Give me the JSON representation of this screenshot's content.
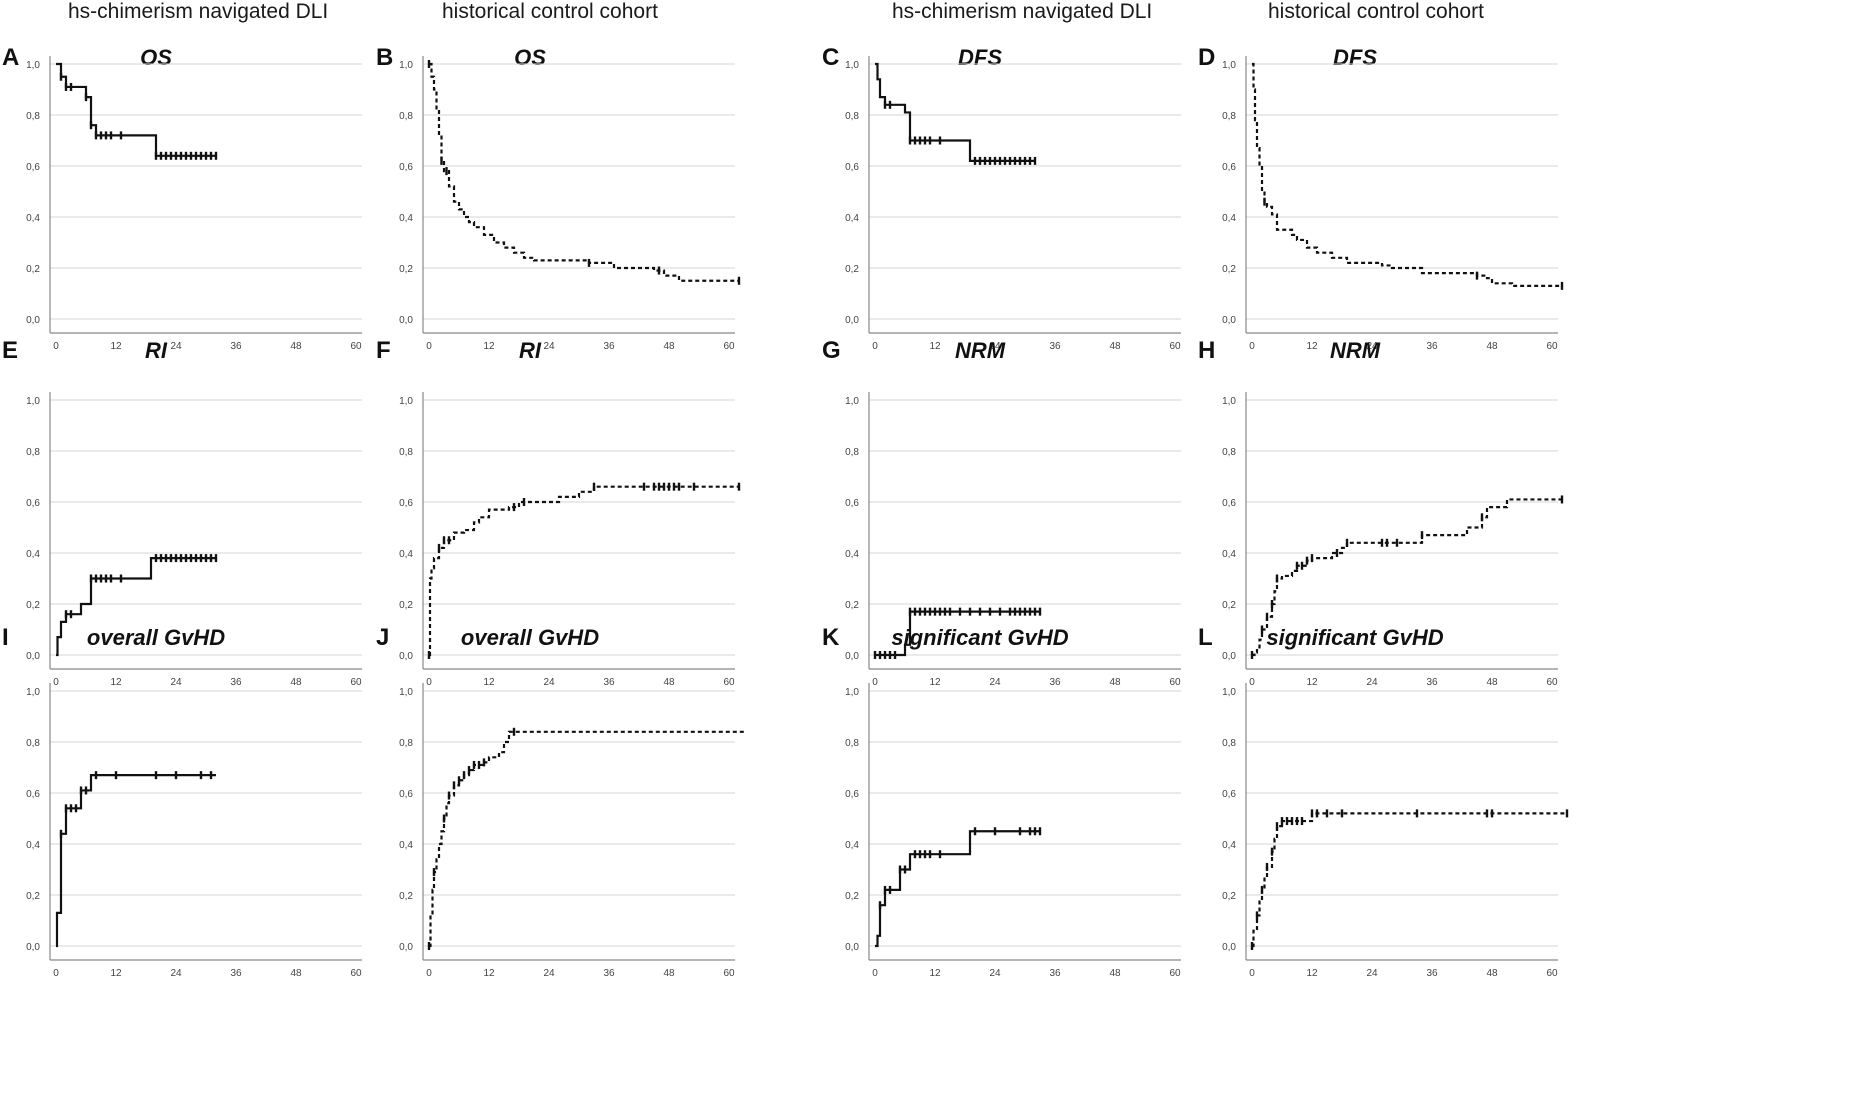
{
  "column_headers": [
    "hs-chimerism navigated DLI",
    "historical control cohort",
    "hs-chimerism navigated DLI",
    "historical control cohort"
  ],
  "axis": {
    "x_ticks": [
      "0",
      "12",
      "24",
      "36",
      "48",
      "60"
    ],
    "y_ticks": [
      "0,0",
      "0,2",
      "0,4",
      "0,6",
      "0,8",
      "1,0"
    ]
  },
  "chart_data": [
    {
      "letter": "A",
      "title": "OS",
      "type": "line",
      "style": "solid",
      "xlim": [
        0,
        60
      ],
      "ylim": [
        0,
        1
      ],
      "steps": [
        [
          0,
          1.0
        ],
        [
          1,
          0.95
        ],
        [
          2,
          0.91
        ],
        [
          6,
          0.87
        ],
        [
          7,
          0.76
        ],
        [
          8,
          0.72
        ],
        [
          20,
          0.72
        ],
        [
          20,
          0.64
        ],
        [
          32,
          0.64
        ]
      ],
      "censor": [
        1,
        2,
        3,
        6,
        7,
        8,
        9,
        10,
        11,
        13,
        20,
        21,
        22,
        23,
        24,
        25,
        26,
        27,
        28,
        29,
        30,
        31,
        32
      ]
    },
    {
      "letter": "B",
      "title": "OS",
      "type": "line",
      "style": "dashed",
      "xlim": [
        0,
        60
      ],
      "ylim": [
        0,
        1
      ],
      "steps": [
        [
          0,
          1.0
        ],
        [
          0.5,
          0.95
        ],
        [
          1,
          0.9
        ],
        [
          1.5,
          0.82
        ],
        [
          2,
          0.72
        ],
        [
          2.5,
          0.62
        ],
        [
          3,
          0.58
        ],
        [
          4,
          0.52
        ],
        [
          5,
          0.46
        ],
        [
          6,
          0.43
        ],
        [
          7,
          0.4
        ],
        [
          8,
          0.38
        ],
        [
          9,
          0.36
        ],
        [
          11,
          0.33
        ],
        [
          13,
          0.3
        ],
        [
          15,
          0.28
        ],
        [
          17,
          0.26
        ],
        [
          19,
          0.24
        ],
        [
          21,
          0.23
        ],
        [
          32,
          0.22
        ],
        [
          37,
          0.2
        ],
        [
          45,
          0.19
        ],
        [
          47,
          0.17
        ],
        [
          50,
          0.15
        ],
        [
          62,
          0.15
        ]
      ],
      "censor": [
        0,
        2.5,
        3.5,
        32,
        46,
        62
      ]
    },
    {
      "letter": "C",
      "title": "DFS",
      "type": "line",
      "style": "solid",
      "xlim": [
        0,
        60
      ],
      "ylim": [
        0,
        1
      ],
      "steps": [
        [
          0,
          1.0
        ],
        [
          0.5,
          0.94
        ],
        [
          1,
          0.87
        ],
        [
          2,
          0.84
        ],
        [
          6,
          0.81
        ],
        [
          7,
          0.7
        ],
        [
          19,
          0.7
        ],
        [
          19,
          0.62
        ],
        [
          32,
          0.62
        ]
      ],
      "censor": [
        2,
        3,
        7,
        8,
        9,
        10,
        11,
        13,
        20,
        21,
        22,
        23,
        24,
        25,
        26,
        27,
        28,
        29,
        30,
        31,
        32
      ]
    },
    {
      "letter": "D",
      "title": "DFS",
      "type": "line",
      "style": "dashed",
      "xlim": [
        0,
        60
      ],
      "ylim": [
        0,
        1
      ],
      "steps": [
        [
          0,
          1.0
        ],
        [
          0.3,
          0.9
        ],
        [
          0.6,
          0.78
        ],
        [
          1,
          0.67
        ],
        [
          1.5,
          0.6
        ],
        [
          2,
          0.5
        ],
        [
          2.5,
          0.46
        ],
        [
          3,
          0.44
        ],
        [
          4,
          0.41
        ],
        [
          5,
          0.35
        ],
        [
          8,
          0.33
        ],
        [
          9,
          0.31
        ],
        [
          11,
          0.28
        ],
        [
          13,
          0.26
        ],
        [
          16,
          0.24
        ],
        [
          19,
          0.22
        ],
        [
          26,
          0.21
        ],
        [
          28,
          0.2
        ],
        [
          34,
          0.18
        ],
        [
          45,
          0.17
        ],
        [
          47,
          0.16
        ],
        [
          48,
          0.14
        ],
        [
          52,
          0.13
        ],
        [
          62,
          0.13
        ]
      ],
      "censor": [
        2.5,
        45,
        62
      ]
    },
    {
      "letter": "E",
      "title": "RI",
      "type": "line",
      "style": "solid",
      "xlim": [
        0,
        60
      ],
      "ylim": [
        0,
        1
      ],
      "steps": [
        [
          0,
          0.0
        ],
        [
          0.3,
          0.07
        ],
        [
          1,
          0.13
        ],
        [
          2,
          0.16
        ],
        [
          5,
          0.2
        ],
        [
          7,
          0.3
        ],
        [
          19,
          0.3
        ],
        [
          19,
          0.38
        ],
        [
          32,
          0.38
        ]
      ],
      "censor": [
        2,
        3,
        7,
        8,
        9,
        10,
        11,
        13,
        20,
        21,
        22,
        23,
        24,
        25,
        26,
        27,
        28,
        29,
        30,
        31,
        32
      ]
    },
    {
      "letter": "F",
      "title": "RI",
      "type": "line",
      "style": "dashed",
      "xlim": [
        0,
        60
      ],
      "ylim": [
        0,
        1
      ],
      "steps": [
        [
          0,
          0.0
        ],
        [
          0.2,
          0.3
        ],
        [
          0.5,
          0.34
        ],
        [
          1,
          0.38
        ],
        [
          2,
          0.42
        ],
        [
          3,
          0.45
        ],
        [
          5,
          0.48
        ],
        [
          7,
          0.49
        ],
        [
          9,
          0.52
        ],
        [
          10,
          0.54
        ],
        [
          12,
          0.57
        ],
        [
          16,
          0.58
        ],
        [
          18,
          0.6
        ],
        [
          26,
          0.62
        ],
        [
          30,
          0.64
        ],
        [
          33,
          0.66
        ],
        [
          62,
          0.66
        ]
      ],
      "censor": [
        0,
        2,
        3,
        4,
        17,
        19,
        33,
        43,
        45,
        46,
        47,
        48,
        49,
        50,
        53,
        62
      ]
    },
    {
      "letter": "G",
      "title": "NRM",
      "type": "line",
      "style": "solid",
      "xlim": [
        0,
        60
      ],
      "ylim": [
        0,
        1
      ],
      "steps": [
        [
          0,
          0.0
        ],
        [
          6,
          0.0
        ],
        [
          6,
          0.04
        ],
        [
          7,
          0.04
        ],
        [
          7,
          0.17
        ],
        [
          33,
          0.17
        ]
      ],
      "censor": [
        0,
        1,
        2,
        3,
        4,
        7,
        8,
        9,
        10,
        11,
        12,
        13,
        14,
        15,
        17,
        19,
        21,
        23,
        25,
        27,
        28,
        29,
        30,
        31,
        32,
        33
      ]
    },
    {
      "letter": "H",
      "title": "NRM",
      "type": "line",
      "style": "dashed",
      "xlim": [
        0,
        60
      ],
      "ylim": [
        0,
        1
      ],
      "steps": [
        [
          0,
          0.0
        ],
        [
          0.5,
          0.01
        ],
        [
          1,
          0.03
        ],
        [
          1.5,
          0.06
        ],
        [
          2,
          0.1
        ],
        [
          3,
          0.15
        ],
        [
          4,
          0.2
        ],
        [
          4.5,
          0.25
        ],
        [
          5,
          0.3
        ],
        [
          6,
          0.31
        ],
        [
          8,
          0.33
        ],
        [
          9,
          0.35
        ],
        [
          11,
          0.37
        ],
        [
          12,
          0.38
        ],
        [
          16,
          0.4
        ],
        [
          18,
          0.42
        ],
        [
          19,
          0.44
        ],
        [
          34,
          0.47
        ],
        [
          43,
          0.5
        ],
        [
          46,
          0.54
        ],
        [
          47,
          0.58
        ],
        [
          51,
          0.61
        ],
        [
          62,
          0.61
        ]
      ],
      "censor": [
        0,
        2,
        3,
        4,
        5,
        9,
        10,
        11,
        12,
        17,
        19,
        26,
        27,
        29,
        34,
        46,
        62
      ]
    },
    {
      "letter": "I",
      "title": "overall GvHD",
      "type": "line",
      "style": "solid",
      "xlim": [
        0,
        60
      ],
      "ylim": [
        0,
        1
      ],
      "steps": [
        [
          0,
          0.0
        ],
        [
          0.2,
          0.13
        ],
        [
          1,
          0.13
        ],
        [
          1,
          0.44
        ],
        [
          2,
          0.44
        ],
        [
          2,
          0.54
        ],
        [
          5,
          0.54
        ],
        [
          5,
          0.61
        ],
        [
          7,
          0.61
        ],
        [
          7,
          0.67
        ],
        [
          32,
          0.67
        ]
      ],
      "censor": [
        1,
        2,
        3,
        4,
        5,
        6,
        8,
        12,
        20,
        24,
        29,
        31
      ]
    },
    {
      "letter": "J",
      "title": "overall GvHD",
      "type": "line",
      "style": "dashed",
      "xlim": [
        0,
        60
      ],
      "ylim": [
        0,
        1
      ],
      "steps": [
        [
          0,
          0.0
        ],
        [
          0.3,
          0.12
        ],
        [
          0.7,
          0.22
        ],
        [
          1,
          0.29
        ],
        [
          1.5,
          0.34
        ],
        [
          2,
          0.4
        ],
        [
          2.5,
          0.45
        ],
        [
          3,
          0.5
        ],
        [
          3.5,
          0.56
        ],
        [
          4,
          0.59
        ],
        [
          5,
          0.63
        ],
        [
          6,
          0.65
        ],
        [
          7,
          0.67
        ],
        [
          8,
          0.69
        ],
        [
          9,
          0.71
        ],
        [
          11,
          0.72
        ],
        [
          12,
          0.74
        ],
        [
          14,
          0.76
        ],
        [
          15,
          0.8
        ],
        [
          16,
          0.84
        ],
        [
          63,
          0.84
        ]
      ],
      "censor": [
        0,
        1,
        3,
        4,
        5,
        6,
        7,
        8,
        9,
        10,
        11,
        17
      ]
    },
    {
      "letter": "K",
      "title": "significant GvHD",
      "type": "line",
      "style": "solid",
      "xlim": [
        0,
        60
      ],
      "ylim": [
        0,
        1
      ],
      "steps": [
        [
          0,
          0.0
        ],
        [
          0.5,
          0.04
        ],
        [
          1,
          0.04
        ],
        [
          1,
          0.16
        ],
        [
          2,
          0.16
        ],
        [
          2,
          0.22
        ],
        [
          5,
          0.22
        ],
        [
          5,
          0.3
        ],
        [
          7,
          0.3
        ],
        [
          7,
          0.36
        ],
        [
          19,
          0.36
        ],
        [
          19,
          0.45
        ],
        [
          33,
          0.45
        ]
      ],
      "censor": [
        1,
        2,
        3,
        5,
        6,
        8,
        9,
        10,
        11,
        13,
        20,
        24,
        29,
        31,
        32,
        33
      ]
    },
    {
      "letter": "L",
      "title": "significant GvHD",
      "type": "line",
      "style": "dashed",
      "xlim": [
        0,
        60
      ],
      "ylim": [
        0,
        1
      ],
      "steps": [
        [
          0,
          0.0
        ],
        [
          0.3,
          0.06
        ],
        [
          1,
          0.12
        ],
        [
          1.5,
          0.18
        ],
        [
          2,
          0.22
        ],
        [
          2.5,
          0.27
        ],
        [
          3,
          0.31
        ],
        [
          4,
          0.37
        ],
        [
          4.5,
          0.42
        ],
        [
          5,
          0.47
        ],
        [
          6,
          0.49
        ],
        [
          12,
          0.52
        ],
        [
          63,
          0.52
        ]
      ],
      "censor": [
        0,
        1,
        2,
        3,
        4,
        5,
        6,
        7,
        8,
        9,
        10,
        12,
        13,
        15,
        18,
        33,
        47,
        48,
        63
      ]
    }
  ]
}
